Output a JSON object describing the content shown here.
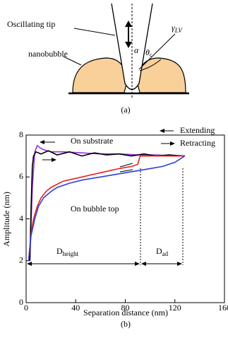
{
  "diagram": {
    "tip_label": "Oscillating tip",
    "bubble_label": "nanobubble",
    "alpha": "α",
    "theta": "θ",
    "theta_sub": "c",
    "gamma": "γ",
    "gamma_sub": "LV",
    "caption": "(a)"
  },
  "chart_data": {
    "type": "line",
    "caption": "(b)",
    "xlabel": "Separation distance (nm)",
    "ylabel": "Amplitude (nm)",
    "xlim": [
      0,
      160
    ],
    "xticks": [
      0,
      40,
      80,
      120,
      160
    ],
    "ylim": [
      0,
      8
    ],
    "yticks": [
      0,
      2,
      4,
      6,
      8
    ],
    "legend": [
      "Extending",
      "Retracting"
    ],
    "annotations": {
      "substrate": "On substrate",
      "bubble": "On bubble top",
      "d_main": "D",
      "d_height": "height",
      "d_ad": "ad"
    },
    "series": [
      {
        "color": "#9b30d9",
        "x": [
          3,
          5,
          7,
          9,
          11,
          14,
          20,
          30,
          45,
          60,
          75,
          90,
          105,
          118,
          128
        ],
        "values": [
          2.0,
          5.5,
          7.2,
          7.5,
          7.4,
          7.3,
          7.2,
          7.2,
          7.15,
          7.1,
          7.1,
          7.05,
          7.05,
          7.0,
          7.0
        ]
      },
      {
        "color": "#000000",
        "x": [
          3,
          4,
          5,
          6,
          8,
          12,
          18,
          25,
          35,
          45,
          55,
          65,
          75,
          85,
          95,
          105,
          115,
          128
        ],
        "values": [
          2.0,
          4.5,
          6.5,
          7.0,
          7.2,
          7.1,
          7.25,
          7.05,
          7.2,
          7.0,
          7.15,
          7.05,
          7.1,
          7.0,
          7.1,
          7.0,
          7.05,
          7.0
        ]
      },
      {
        "color": "#e8201c",
        "x": [
          2,
          4,
          6,
          9,
          12,
          16,
          20,
          30,
          45,
          60,
          75,
          85,
          90,
          91,
          92,
          100,
          110,
          120,
          128
        ],
        "values": [
          2.0,
          3.3,
          4.0,
          4.6,
          5.0,
          5.3,
          5.5,
          5.8,
          6.0,
          6.2,
          6.4,
          6.5,
          6.6,
          6.8,
          7.0,
          7.0,
          7.0,
          7.0,
          7.0
        ]
      },
      {
        "color": "#2a3fe0",
        "x": [
          2,
          4,
          7,
          10,
          14,
          20,
          25,
          35,
          45,
          60,
          75,
          90,
          100,
          110,
          120,
          128
        ],
        "values": [
          2.0,
          3.2,
          4.0,
          4.6,
          5.0,
          5.3,
          5.5,
          5.7,
          5.85,
          6.0,
          6.15,
          6.3,
          6.4,
          6.5,
          6.7,
          7.0
        ]
      }
    ]
  }
}
